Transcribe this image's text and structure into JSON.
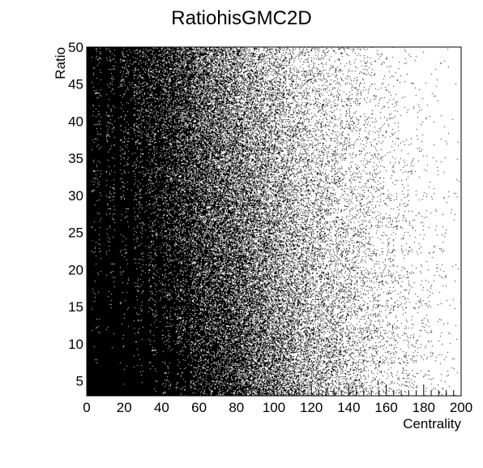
{
  "chart_data": {
    "type": "heatmap",
    "title": "RatiohisGMC2D",
    "xlabel": "Centrality",
    "ylabel": "Ratio",
    "xlim": [
      0,
      200
    ],
    "ylim": [
      3,
      50
    ],
    "x_ticks": [
      0,
      20,
      40,
      60,
      80,
      100,
      120,
      140,
      160,
      180,
      200
    ],
    "y_ticks": [
      5,
      10,
      15,
      20,
      25,
      30,
      35,
      40,
      45,
      50
    ],
    "x_tick_labels": [
      "0",
      "20",
      "40",
      "60",
      "80",
      "100",
      "120",
      "140",
      "160",
      "180",
      "200"
    ],
    "y_tick_labels": [
      "5",
      "10",
      "15",
      "20",
      "25",
      "30",
      "35",
      "40",
      "45",
      "50"
    ],
    "grid": false,
    "draw_option": "scatter-dots",
    "density_profile": {
      "x": [
        0,
        20,
        40,
        60,
        70,
        80,
        90,
        100,
        110,
        120,
        130,
        140,
        160,
        180,
        200
      ],
      "density_low_ratio": [
        1.0,
        1.0,
        0.98,
        0.92,
        0.85,
        0.78,
        0.65,
        0.55,
        0.42,
        0.32,
        0.25,
        0.18,
        0.08,
        0.03,
        0.01
      ],
      "density_high_ratio": [
        0.95,
        0.92,
        0.8,
        0.6,
        0.48,
        0.38,
        0.28,
        0.2,
        0.14,
        0.1,
        0.07,
        0.05,
        0.02,
        0.005,
        0.0
      ]
    },
    "colors": {
      "points": "#000000",
      "background": "#ffffff",
      "axis": "#000000"
    }
  }
}
